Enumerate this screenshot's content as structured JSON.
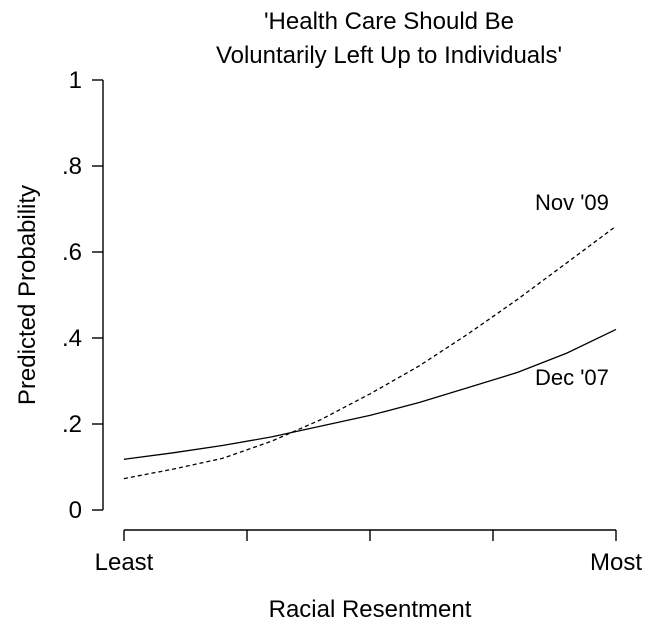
{
  "chart_data": {
    "type": "line",
    "title": [
      "'Health Care Should Be",
      "Voluntarily Left Up to Individuals'"
    ],
    "xlabel": "Racial Resentment",
    "ylabel": "Predicted Probability",
    "xlim": [
      0,
      1
    ],
    "ylim": [
      0,
      1
    ],
    "x_ticks": [
      0,
      0.25,
      0.5,
      0.75,
      1
    ],
    "x_tick_labels": [
      "Least",
      "",
      "",
      "",
      "Most"
    ],
    "y_ticks": [
      0,
      0.2,
      0.4,
      0.6,
      0.8,
      1
    ],
    "y_tick_labels": [
      "0",
      ".2",
      ".4",
      ".6",
      ".8",
      "1"
    ],
    "grid": false,
    "legend": "none",
    "series": [
      {
        "name": "Dec '07",
        "style": "solid",
        "color": "#000000",
        "x": [
          0,
          0.1,
          0.2,
          0.3,
          0.4,
          0.5,
          0.6,
          0.7,
          0.8,
          0.9,
          1.0
        ],
        "values": [
          0.118,
          0.133,
          0.15,
          0.17,
          0.195,
          0.22,
          0.25,
          0.285,
          0.32,
          0.365,
          0.42
        ]
      },
      {
        "name": "Nov '09",
        "style": "dashed",
        "color": "#000000",
        "x": [
          0,
          0.1,
          0.2,
          0.3,
          0.4,
          0.5,
          0.6,
          0.7,
          0.8,
          0.9,
          1.0
        ],
        "values": [
          0.073,
          0.095,
          0.12,
          0.16,
          0.21,
          0.27,
          0.335,
          0.41,
          0.49,
          0.575,
          0.66
        ]
      }
    ],
    "annotations": [
      {
        "text": "Nov '09",
        "series": "Nov '09"
      },
      {
        "text": "Dec '07",
        "series": "Dec '07"
      }
    ]
  }
}
